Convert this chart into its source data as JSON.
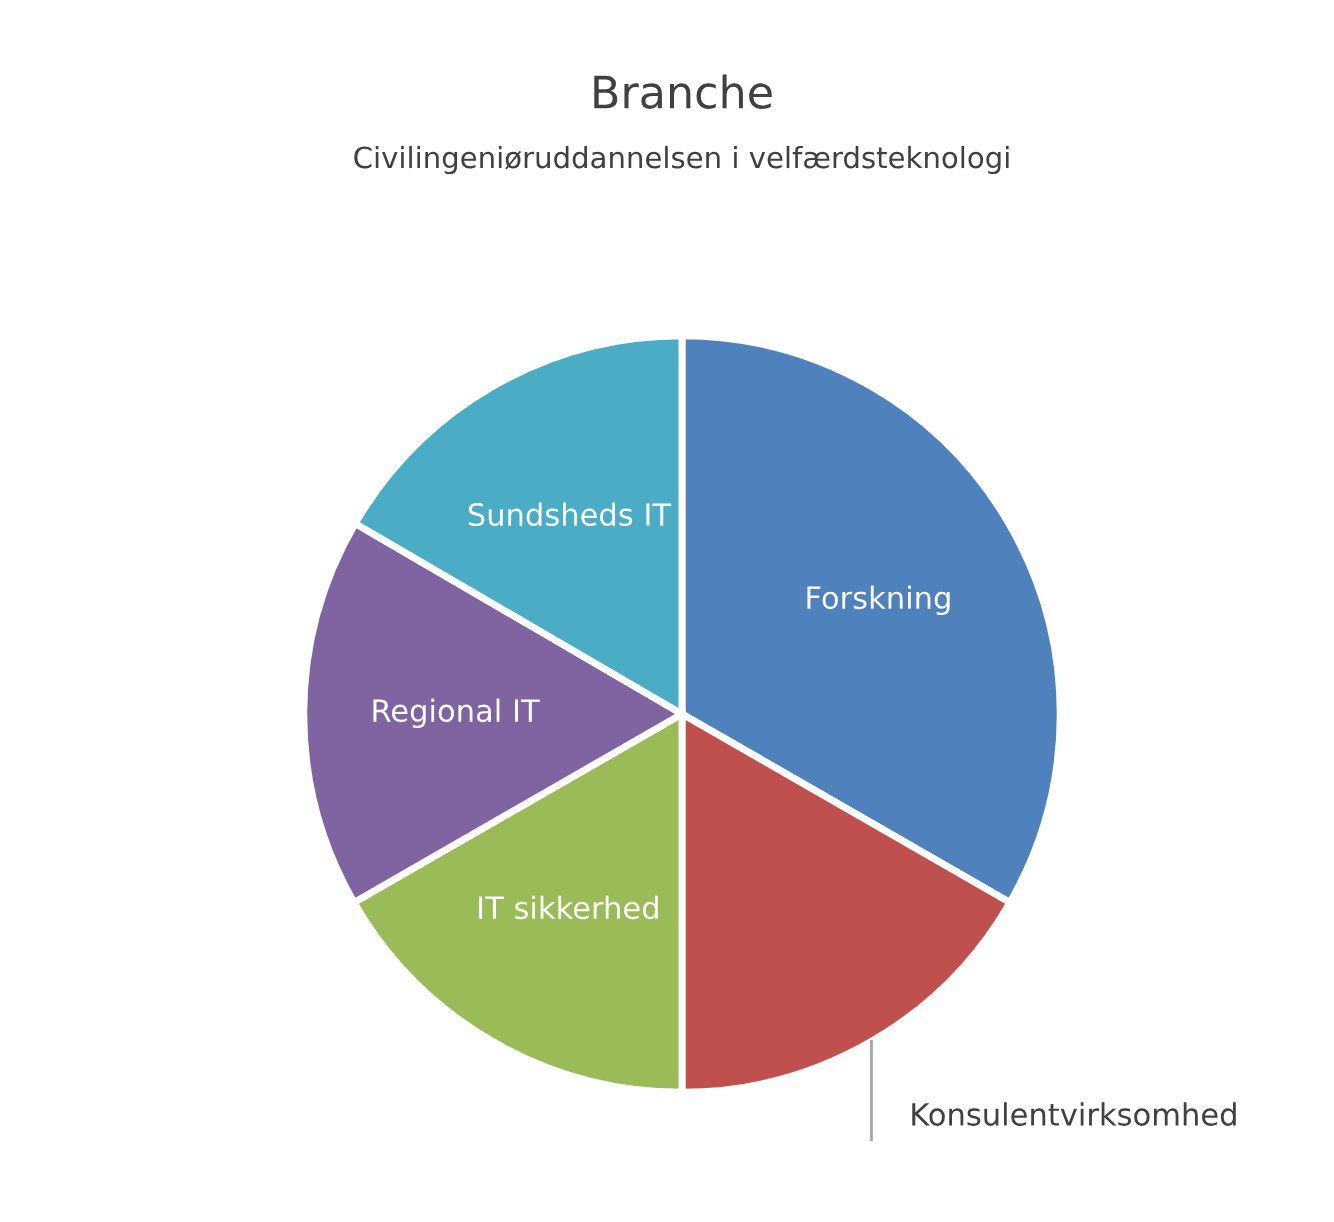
{
  "chart_data": {
    "type": "pie",
    "title": "Branche",
    "subtitle": "Civilingeniøruddannelsen i velfærdsteknologi",
    "categories": [
      "Forskning",
      "Konsulentvirksomhed",
      "IT sikkerhed",
      "Regional IT",
      "Sundsheds IT"
    ],
    "values": [
      33.3,
      16.7,
      16.7,
      16.7,
      16.6
    ],
    "colors": [
      "#4f81bd",
      "#c0504d",
      "#9bbb59",
      "#8064a2",
      "#4bacc6"
    ],
    "legend": false
  }
}
